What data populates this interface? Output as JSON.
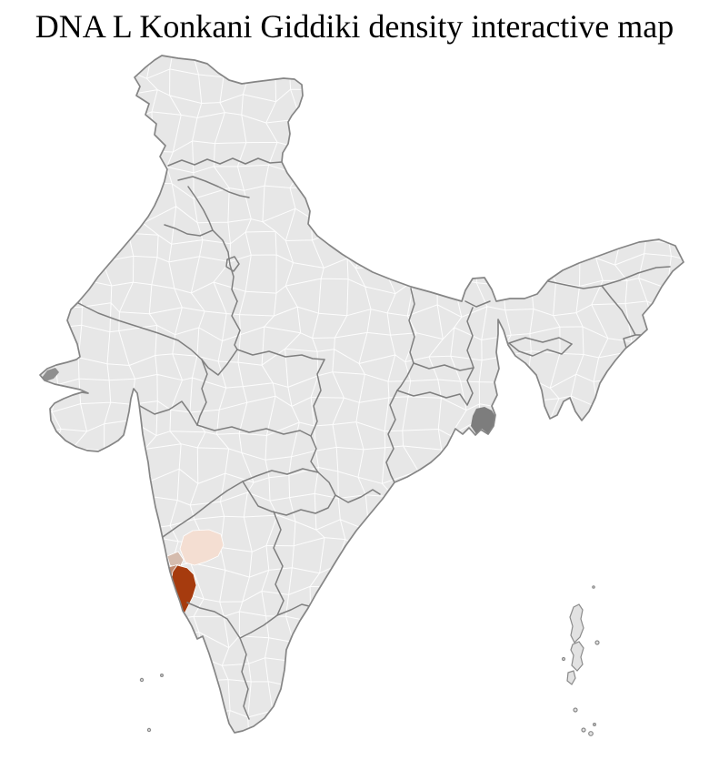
{
  "title": "DNA L Konkani Giddiki density interactive map",
  "map": {
    "label": "india-district-choropleth",
    "colors": {
      "background": "#ffffff",
      "land": "#e7e7e7",
      "district_border": "#ffffff",
      "state_border": "#7f7f7f",
      "coast": "#858585",
      "density_high": "#a63b0e",
      "density_mid": "#c08a70",
      "density_low_mid": "#d5bcae",
      "density_low": "#f4ded2",
      "delta_marsh": "#7d7d7d",
      "kutch_marsh": "#8f8f8f",
      "island_fill": "#e2e2e2",
      "island_stroke": "#8a8a8a"
    },
    "density_levels": [
      {
        "level": "high",
        "color": "#a63b0e"
      },
      {
        "level": "mid",
        "color": "#c08a70"
      },
      {
        "level": "low-mid",
        "color": "#d5bcae"
      },
      {
        "level": "low",
        "color": "#f4ded2"
      },
      {
        "level": "none",
        "color": "#e7e7e7"
      }
    ]
  }
}
